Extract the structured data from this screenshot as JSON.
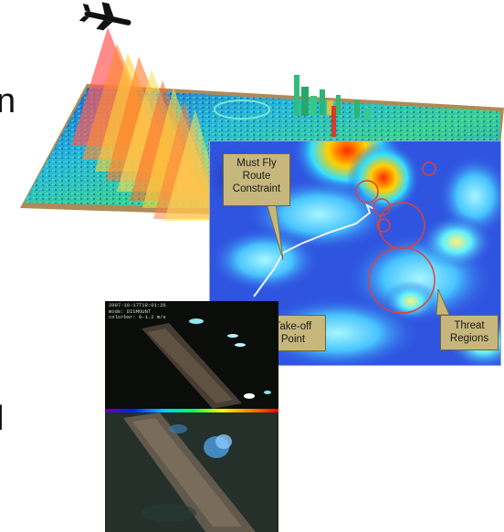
{
  "edge_text": {
    "top": "n",
    "bottom": "l"
  },
  "callouts": {
    "must_fly": "Must Fly Route Constraint",
    "take_off": "Take-off Point",
    "threat": "Threat Regions"
  },
  "camera": {
    "timestamp": "2007-10-17T18:01:26",
    "mode": "mode: DISMOUNT",
    "colorbar": "colorbar: 0-1.2 m/s"
  },
  "icons": {
    "aircraft": "uav-icon",
    "threat_marker": "circle-icon"
  },
  "colors": {
    "heatmap_base": "#2f55e0",
    "callout_fill": "#c7b77d",
    "threat_circle": "#e0403a",
    "route_line": "#f2f2f2"
  }
}
